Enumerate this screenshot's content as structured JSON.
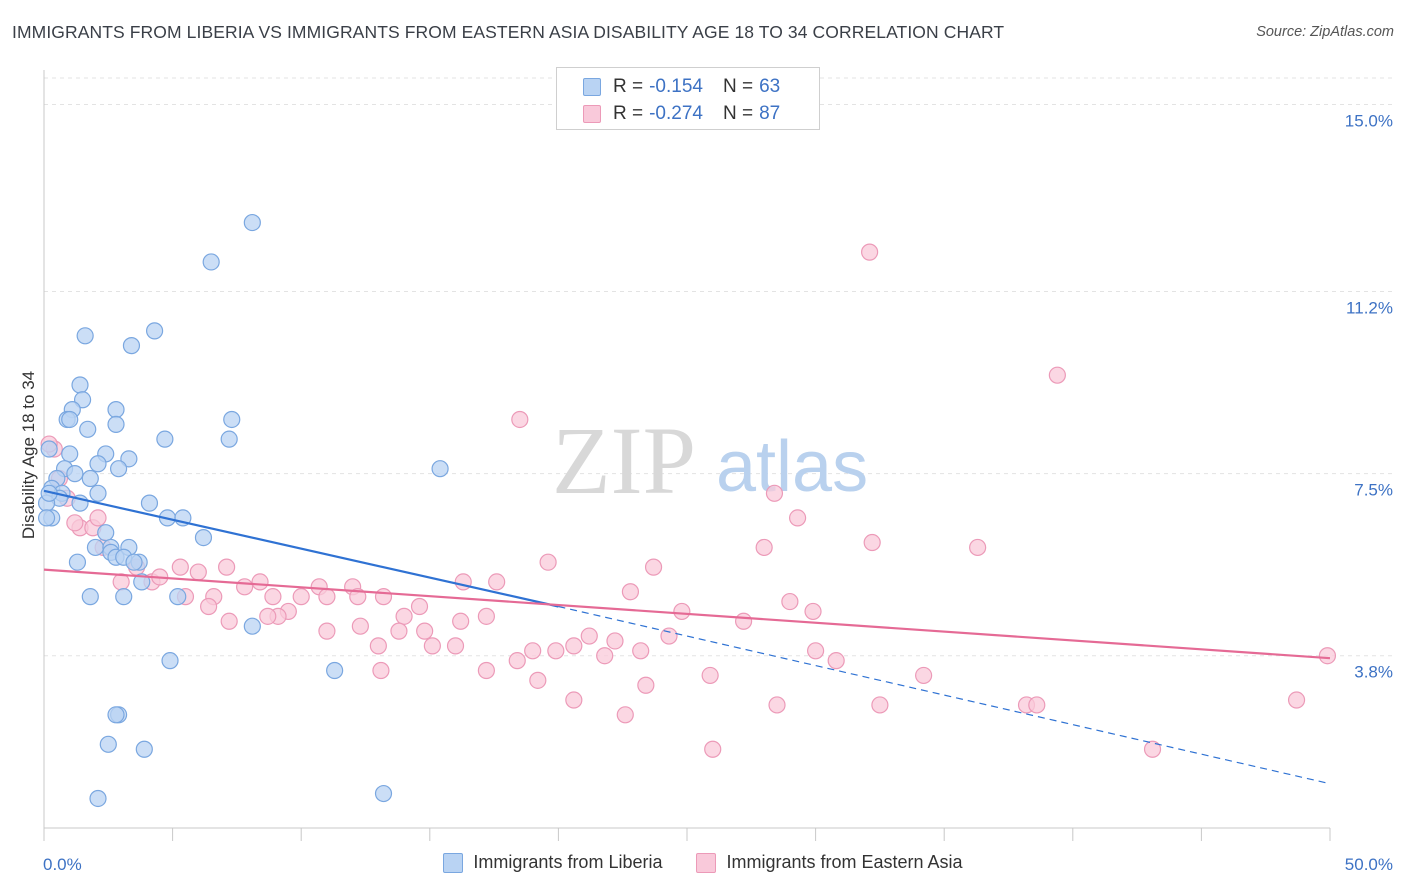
{
  "title": "IMMIGRANTS FROM LIBERIA VS IMMIGRANTS FROM EASTERN ASIA DISABILITY AGE 18 TO 34 CORRELATION CHART",
  "source": "Source: ZipAtlas.com",
  "watermark": {
    "zip": "ZIP",
    "atlas": "atlas"
  },
  "legend": {
    "series1": {
      "r_label": "R =",
      "r_value": "-0.154",
      "n_label": "N =",
      "n_value": "63"
    },
    "series2": {
      "r_label": "R =",
      "r_value": "-0.274",
      "n_label": "N =",
      "n_value": "87"
    }
  },
  "bottom_legend": {
    "series1": "Immigrants from Liberia",
    "series2": "Immigrants from Eastern Asia"
  },
  "colors": {
    "blue_fill": "#b9d3f3",
    "blue_stroke": "#7aa7e0",
    "blue_line": "#2f72d3",
    "pink_fill": "#f9c9da",
    "pink_stroke": "#ec9ab8",
    "pink_line": "#e56a95",
    "grid": "#e3e3e3",
    "tick_label": "#3d72c4",
    "axis": "#c8c8c8"
  },
  "chart_data": {
    "type": "scatter",
    "title": "IMMIGRANTS FROM LIBERIA VS IMMIGRANTS FROM EASTERN ASIA DISABILITY AGE 18 TO 34 CORRELATION CHART",
    "xlabel": "",
    "ylabel": "Disability Age 18 to 34",
    "xlim": [
      0,
      50
    ],
    "ylim": [
      0.3,
      15.7
    ],
    "x_tick_labels": [
      {
        "value": 0,
        "label": "0.0%"
      },
      {
        "value": 50,
        "label": "50.0%"
      }
    ],
    "y_ticks": [
      {
        "value": 3.8,
        "label": "3.8%"
      },
      {
        "value": 7.5,
        "label": "7.5%"
      },
      {
        "value": 11.2,
        "label": "11.2%"
      },
      {
        "value": 15.0,
        "label": "15.0%"
      }
    ],
    "grid": true,
    "legend_position": "top-center",
    "series": [
      {
        "name": "Immigrants from Liberia",
        "color": "#b9d3f3",
        "points": [
          [
            8.1,
            12.6
          ],
          [
            6.5,
            11.8
          ],
          [
            1.6,
            10.3
          ],
          [
            4.3,
            10.4
          ],
          [
            3.4,
            10.1
          ],
          [
            1.4,
            9.3
          ],
          [
            1.5,
            9.0
          ],
          [
            1.1,
            8.8
          ],
          [
            2.8,
            8.8
          ],
          [
            0.9,
            8.6
          ],
          [
            1.0,
            8.6
          ],
          [
            7.3,
            8.6
          ],
          [
            1.7,
            8.4
          ],
          [
            2.8,
            8.5
          ],
          [
            4.7,
            8.2
          ],
          [
            7.2,
            8.2
          ],
          [
            0.2,
            8.0
          ],
          [
            1.0,
            7.9
          ],
          [
            2.4,
            7.9
          ],
          [
            3.3,
            7.8
          ],
          [
            0.8,
            7.6
          ],
          [
            2.1,
            7.7
          ],
          [
            2.9,
            7.6
          ],
          [
            15.4,
            7.6
          ],
          [
            1.2,
            7.5
          ],
          [
            0.5,
            7.4
          ],
          [
            1.8,
            7.4
          ],
          [
            0.3,
            7.2
          ],
          [
            0.7,
            7.1
          ],
          [
            2.1,
            7.1
          ],
          [
            0.6,
            7.0
          ],
          [
            0.1,
            6.9
          ],
          [
            1.4,
            6.9
          ],
          [
            4.1,
            6.9
          ],
          [
            0.3,
            6.6
          ],
          [
            4.8,
            6.6
          ],
          [
            5.4,
            6.6
          ],
          [
            0.1,
            6.6
          ],
          [
            2.4,
            6.3
          ],
          [
            6.2,
            6.2
          ],
          [
            2.0,
            6.0
          ],
          [
            2.6,
            6.0
          ],
          [
            3.3,
            6.0
          ],
          [
            2.6,
            5.9
          ],
          [
            2.8,
            5.8
          ],
          [
            3.1,
            5.8
          ],
          [
            3.7,
            5.7
          ],
          [
            3.5,
            5.7
          ],
          [
            1.3,
            5.7
          ],
          [
            3.8,
            5.3
          ],
          [
            1.8,
            5.0
          ],
          [
            3.1,
            5.0
          ],
          [
            5.2,
            5.0
          ],
          [
            8.1,
            4.4
          ],
          [
            4.9,
            3.7
          ],
          [
            11.3,
            3.5
          ],
          [
            2.9,
            2.6
          ],
          [
            2.8,
            2.6
          ],
          [
            2.5,
            2.0
          ],
          [
            3.9,
            1.9
          ],
          [
            2.1,
            0.9
          ],
          [
            13.2,
            1.0
          ],
          [
            0.2,
            7.1
          ]
        ]
      },
      {
        "name": "Immigrants from Eastern Asia",
        "color": "#f9c9da",
        "points": [
          [
            32.1,
            12.0
          ],
          [
            39.4,
            9.5
          ],
          [
            18.5,
            8.6
          ],
          [
            0.4,
            8.0
          ],
          [
            0.6,
            7.4
          ],
          [
            0.9,
            7.0
          ],
          [
            28.4,
            7.1
          ],
          [
            1.4,
            6.4
          ],
          [
            1.9,
            6.4
          ],
          [
            2.1,
            6.6
          ],
          [
            29.3,
            6.6
          ],
          [
            2.3,
            6.0
          ],
          [
            28.0,
            6.0
          ],
          [
            32.2,
            6.1
          ],
          [
            36.3,
            6.0
          ],
          [
            19.6,
            5.7
          ],
          [
            5.3,
            5.6
          ],
          [
            6.0,
            5.5
          ],
          [
            7.1,
            5.6
          ],
          [
            23.7,
            5.6
          ],
          [
            3.6,
            5.6
          ],
          [
            3.0,
            5.3
          ],
          [
            4.2,
            5.3
          ],
          [
            4.5,
            5.4
          ],
          [
            8.4,
            5.3
          ],
          [
            7.8,
            5.2
          ],
          [
            10.7,
            5.2
          ],
          [
            12.0,
            5.2
          ],
          [
            17.6,
            5.3
          ],
          [
            16.3,
            5.3
          ],
          [
            22.8,
            5.1
          ],
          [
            13.2,
            5.0
          ],
          [
            8.9,
            5.0
          ],
          [
            12.2,
            5.0
          ],
          [
            11.0,
            5.0
          ],
          [
            10.0,
            5.0
          ],
          [
            5.5,
            5.0
          ],
          [
            6.6,
            5.0
          ],
          [
            29.0,
            4.9
          ],
          [
            14.6,
            4.8
          ],
          [
            6.4,
            4.8
          ],
          [
            9.5,
            4.7
          ],
          [
            24.8,
            4.7
          ],
          [
            29.9,
            4.7
          ],
          [
            14.0,
            4.6
          ],
          [
            9.1,
            4.6
          ],
          [
            8.7,
            4.6
          ],
          [
            7.2,
            4.5
          ],
          [
            16.2,
            4.5
          ],
          [
            17.2,
            4.6
          ],
          [
            27.2,
            4.5
          ],
          [
            12.3,
            4.4
          ],
          [
            11.0,
            4.3
          ],
          [
            13.8,
            4.3
          ],
          [
            14.8,
            4.3
          ],
          [
            24.3,
            4.2
          ],
          [
            21.2,
            4.2
          ],
          [
            22.2,
            4.1
          ],
          [
            20.6,
            4.0
          ],
          [
            16.0,
            4.0
          ],
          [
            23.2,
            3.9
          ],
          [
            15.1,
            4.0
          ],
          [
            19.9,
            3.9
          ],
          [
            30.0,
            3.9
          ],
          [
            13.0,
            4.0
          ],
          [
            21.8,
            3.8
          ],
          [
            18.4,
            3.7
          ],
          [
            19.0,
            3.9
          ],
          [
            30.8,
            3.7
          ],
          [
            17.2,
            3.5
          ],
          [
            13.1,
            3.5
          ],
          [
            25.9,
            3.4
          ],
          [
            34.2,
            3.4
          ],
          [
            19.2,
            3.3
          ],
          [
            23.4,
            3.2
          ],
          [
            20.6,
            2.9
          ],
          [
            22.6,
            2.6
          ],
          [
            28.5,
            2.8
          ],
          [
            32.5,
            2.8
          ],
          [
            38.2,
            2.8
          ],
          [
            38.6,
            2.8
          ],
          [
            48.7,
            2.9
          ],
          [
            26.0,
            1.9
          ],
          [
            43.1,
            1.9
          ],
          [
            49.9,
            3.8
          ],
          [
            0.2,
            8.1
          ],
          [
            1.2,
            6.5
          ]
        ]
      }
    ],
    "trend_lines": [
      {
        "series": "Immigrants from Liberia",
        "x0": 0,
        "y0": 7.15,
        "x1": 20,
        "y1": 4.8,
        "dashed_to_x": 50,
        "dashed_to_y": 1.2
      },
      {
        "series": "Immigrants from Eastern Asia",
        "x0": 0,
        "y0": 5.55,
        "x1": 50,
        "y1": 3.75
      }
    ]
  }
}
